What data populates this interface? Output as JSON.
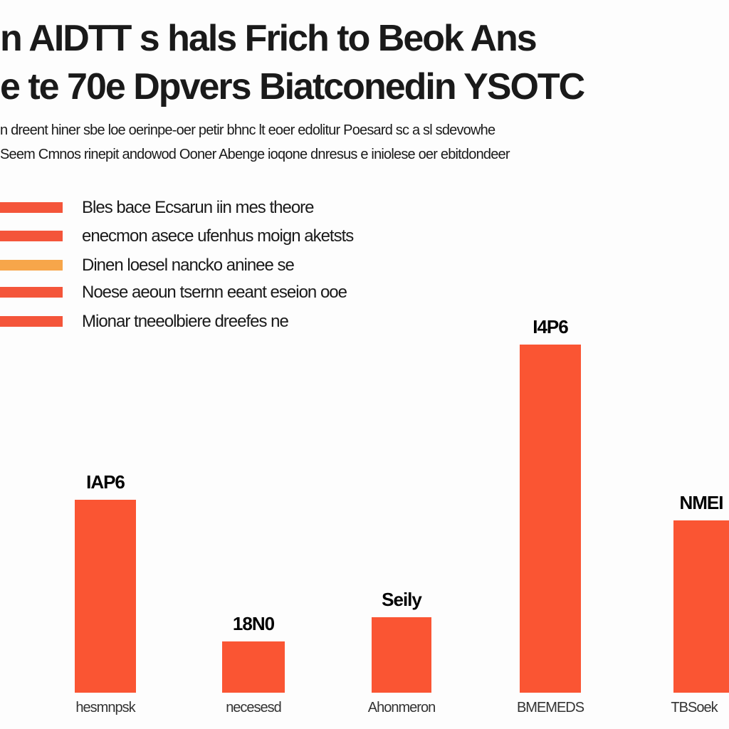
{
  "chart_data": {
    "type": "bar",
    "title": [
      "n AIDTT s hals Frich to Beok Ans",
      "e te 70e Dpvers Biatconedin YSOTC"
    ],
    "subtitle": [
      "n dreent hiner sbe loe oerinpe-oer petir bhnc lt eoer edolitur Poesard sc a sl sdevowhe",
      "Seem Cmnos rinepit andowod Ooner Abenge ioqone dnresus e iniolese oer ebitdondeer"
    ],
    "legend": [
      {
        "label": "Bles bace Ecsarun iin mes theore",
        "color": "#f4553a"
      },
      {
        "label": "enecmon asece ufenhus moign aketsts",
        "color": "#f4553a"
      },
      {
        "label": "Dinen loesel nancko aninee se",
        "color": "#f7a64a"
      },
      {
        "label": "Noese aeoun tsernn eeant eseion ooe",
        "color": "#f4553a"
      },
      {
        "label": "Mionar tneeolbiere dreefes ne",
        "color": "#f4553a"
      }
    ],
    "categories": [
      "hesmnpsk",
      "necesesd",
      "Ahonmeron",
      "BMEMEDS",
      "TBSoek"
    ],
    "values": [
      271,
      72,
      106,
      489,
      242
    ],
    "data_labels": [
      "IAP6",
      "18N0",
      "Seily",
      "I4P6",
      "NMEI"
    ],
    "bar_color": "#fa5533",
    "ylim": [
      0,
      500
    ],
    "xlabel": "",
    "ylabel": "",
    "grid": false
  }
}
